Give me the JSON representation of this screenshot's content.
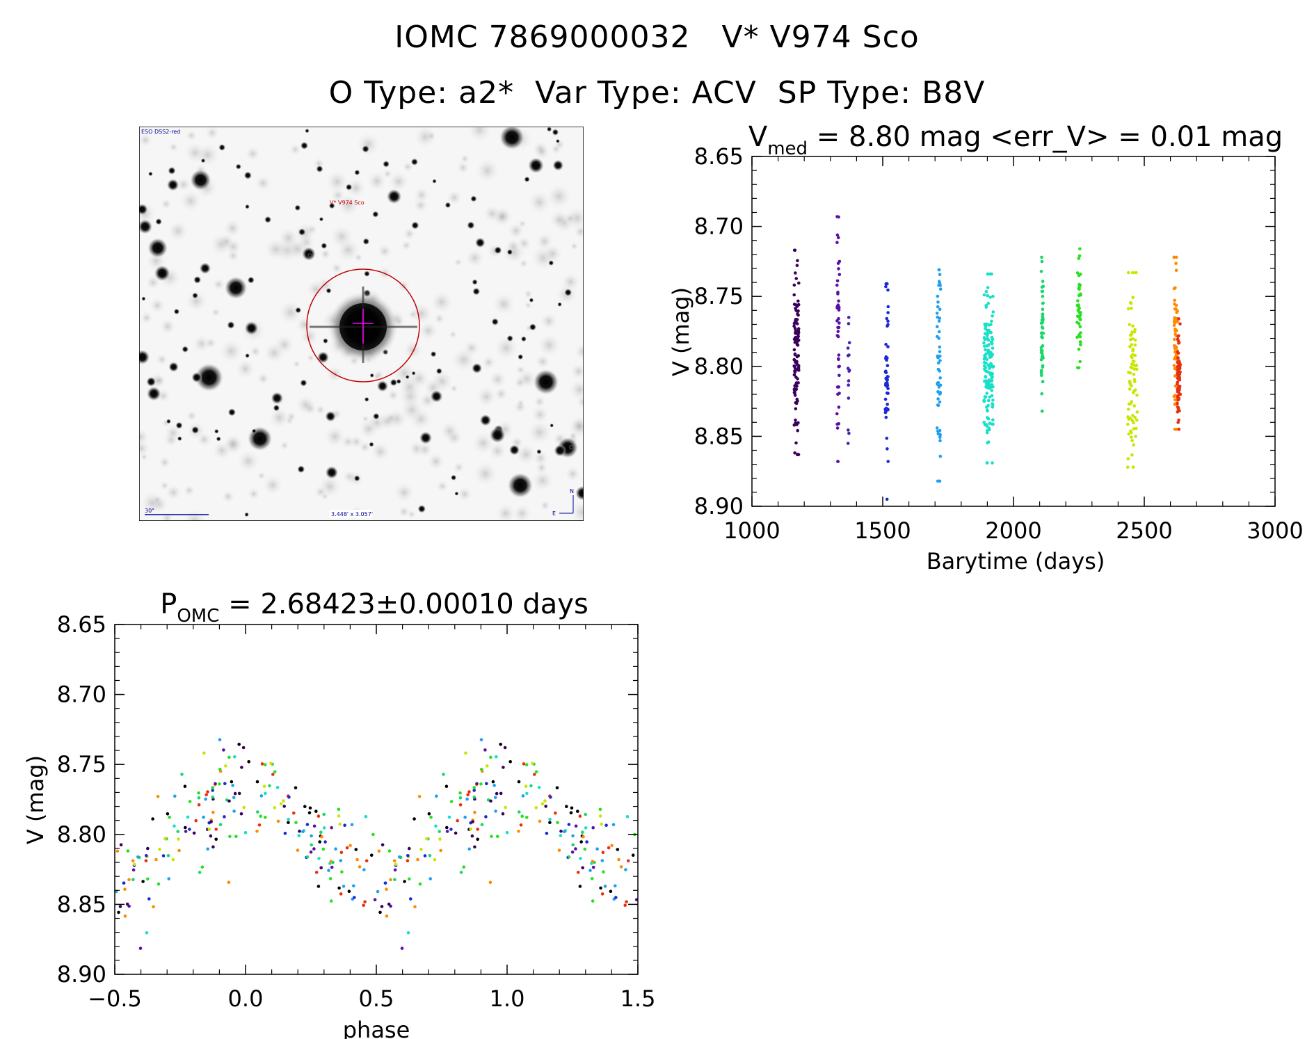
{
  "header": {
    "line1": "IOMC 7869000032   V* V974 Sco",
    "line2": "O Type: a2*  Var Type: ACV  SP Type: B8V"
  },
  "finder": {
    "survey": "ESO DSS2-red",
    "target": "V* V974 Sco",
    "scale": "30\"",
    "fov": "3.448' x 3.057'",
    "north": "N",
    "east": "E"
  },
  "chart_data": [
    {
      "type": "scatter",
      "title": "V_med = 8.80 mag <err_V> = 0.01 mag",
      "title_main": "V",
      "title_sub": "med",
      "title_rest": " = 8.80 mag <err_V> = 0.01 mag",
      "xlabel": "Barytime (days)",
      "ylabel": "V (mag)",
      "xlim": [
        1000,
        3000
      ],
      "ylim": [
        8.65,
        8.9
      ],
      "y_inverted": true,
      "xticks": [
        1000,
        1500,
        2000,
        2500,
        3000
      ],
      "xtick_labels": [
        "1000",
        "1500",
        "2000",
        "2500",
        "3000"
      ],
      "yticks": [
        8.65,
        8.7,
        8.75,
        8.8,
        8.85,
        8.9
      ],
      "ytick_labels": [
        "8.65",
        "8.70",
        "8.75",
        "8.80",
        "8.85",
        "8.90"
      ],
      "series": [
        {
          "name": "season1",
          "color": "#3a005a",
          "x": 1170,
          "width": 18,
          "ymin": 8.717,
          "ymax": 8.863,
          "n": 110
        },
        {
          "name": "season2",
          "color": "#5a10a8",
          "x": 1330,
          "width": 10,
          "ymin": 8.693,
          "ymax": 8.868,
          "n": 45
        },
        {
          "name": "season2b",
          "color": "#4a20b0",
          "x": 1370,
          "width": 6,
          "ymin": 8.765,
          "ymax": 8.855,
          "n": 15
        },
        {
          "name": "season3",
          "color": "#1a28d8",
          "x": 1515,
          "width": 12,
          "ymin": 8.741,
          "ymax": 8.895,
          "n": 50
        },
        {
          "name": "season4",
          "color": "#1ea0f0",
          "x": 1715,
          "width": 14,
          "ymin": 8.731,
          "ymax": 8.882,
          "n": 55
        },
        {
          "name": "season5",
          "color": "#18e0c8",
          "x": 1905,
          "width": 36,
          "ymin": 8.734,
          "ymax": 8.869,
          "n": 150
        },
        {
          "name": "season6",
          "color": "#18d868",
          "x": 2110,
          "width": 8,
          "ymin": 8.722,
          "ymax": 8.832,
          "n": 50
        },
        {
          "name": "season7",
          "color": "#28e020",
          "x": 2250,
          "width": 14,
          "ymin": 8.716,
          "ymax": 8.801,
          "n": 45
        },
        {
          "name": "season8",
          "color": "#c8e600",
          "x": 2455,
          "width": 36,
          "ymin": 8.733,
          "ymax": 8.872,
          "n": 80
        },
        {
          "name": "season9",
          "color": "#ff8a00",
          "x": 2620,
          "width": 14,
          "ymin": 8.722,
          "ymax": 8.845,
          "n": 60
        },
        {
          "name": "season10",
          "color": "#e83010",
          "x": 2632,
          "width": 12,
          "ymin": 8.766,
          "ymax": 8.845,
          "n": 70
        }
      ]
    },
    {
      "type": "scatter",
      "title": "P_OMC = 2.68423±0.00010 days",
      "title_main": "P",
      "title_sub": "OMC",
      "title_rest": " = 2.68423±0.00010 days",
      "xlabel": "phase",
      "ylabel": "V (mag)",
      "xlim": [
        -0.5,
        1.5
      ],
      "ylim": [
        8.65,
        8.9
      ],
      "y_inverted": true,
      "xticks": [
        -0.5,
        0.0,
        0.5,
        1.0,
        1.5
      ],
      "xtick_labels": [
        "−0.5",
        "0.0",
        "0.5",
        "1.0",
        "1.5"
      ],
      "yticks": [
        8.65,
        8.7,
        8.75,
        8.8,
        8.85,
        8.9
      ],
      "ytick_labels": [
        "8.65",
        "8.70",
        "8.75",
        "8.80",
        "8.85",
        "8.90"
      ],
      "period_days": 2.68423,
      "mean_mag": 8.8,
      "amplitude_mag": 0.03,
      "colors": [
        "#000000",
        "#3a005a",
        "#5a10a8",
        "#1a28d8",
        "#1ea0f0",
        "#18e0c8",
        "#18d868",
        "#28e020",
        "#c8e600",
        "#ff8a00",
        "#e83010"
      ],
      "n_points": 420
    }
  ]
}
